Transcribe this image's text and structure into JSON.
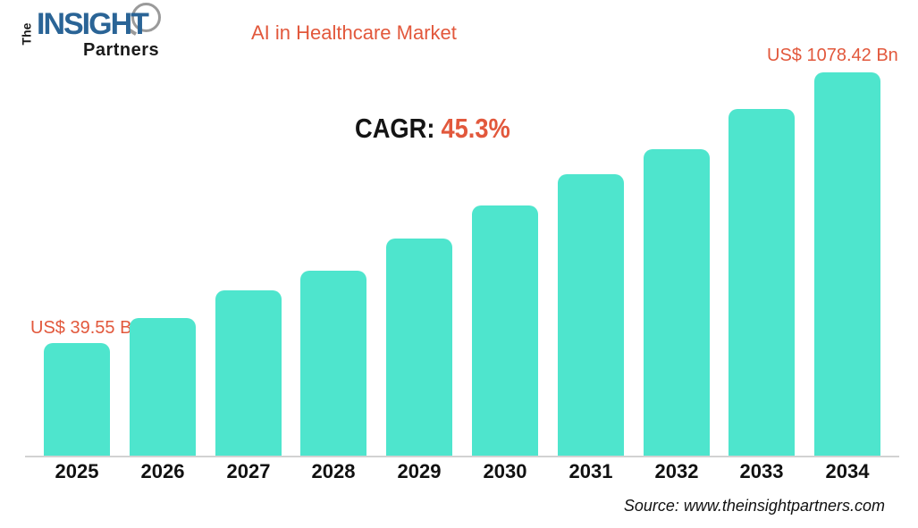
{
  "header": {
    "logo": {
      "the": "The",
      "insight": "INSIGHT",
      "partners": "Partners"
    },
    "title": "AI in Healthcare Market"
  },
  "cagr": {
    "label": "CAGR:",
    "value": "45.3%"
  },
  "annotations": {
    "first_bar_label": "US$ 39.55 Bn",
    "last_bar_label": "US$ 1078.42 Bn"
  },
  "footer": {
    "source": "Source: www.theinsightpartners.com"
  },
  "colors": {
    "bar": "#4EE5CD",
    "accent_orange": "#E2583C",
    "logo_blue": "#2A6496",
    "axis_line": "#D2D2D2",
    "text_black": "#111111"
  },
  "chart_data": {
    "type": "bar",
    "title": "AI in Healthcare Market",
    "categories": [
      "2025",
      "2026",
      "2027",
      "2028",
      "2029",
      "2030",
      "2031",
      "2032",
      "2033",
      "2034"
    ],
    "unit": "US$ Bn",
    "values_bn": [
      39.55,
      null,
      null,
      null,
      null,
      null,
      null,
      null,
      null,
      1078.42
    ],
    "data_labels": {
      "2025": "US$ 39.55 Bn",
      "2034": "US$ 1078.42 Bn"
    },
    "cagr_percent": 45.3,
    "bar_heights_relative_pct": [
      29.4,
      35.9,
      43.1,
      48.3,
      56.6,
      65.3,
      73.4,
      80.0,
      90.4,
      100
    ],
    "xlabel": "",
    "ylabel": "",
    "y_axis_shown": false,
    "gridlines": false,
    "legend": "none"
  }
}
